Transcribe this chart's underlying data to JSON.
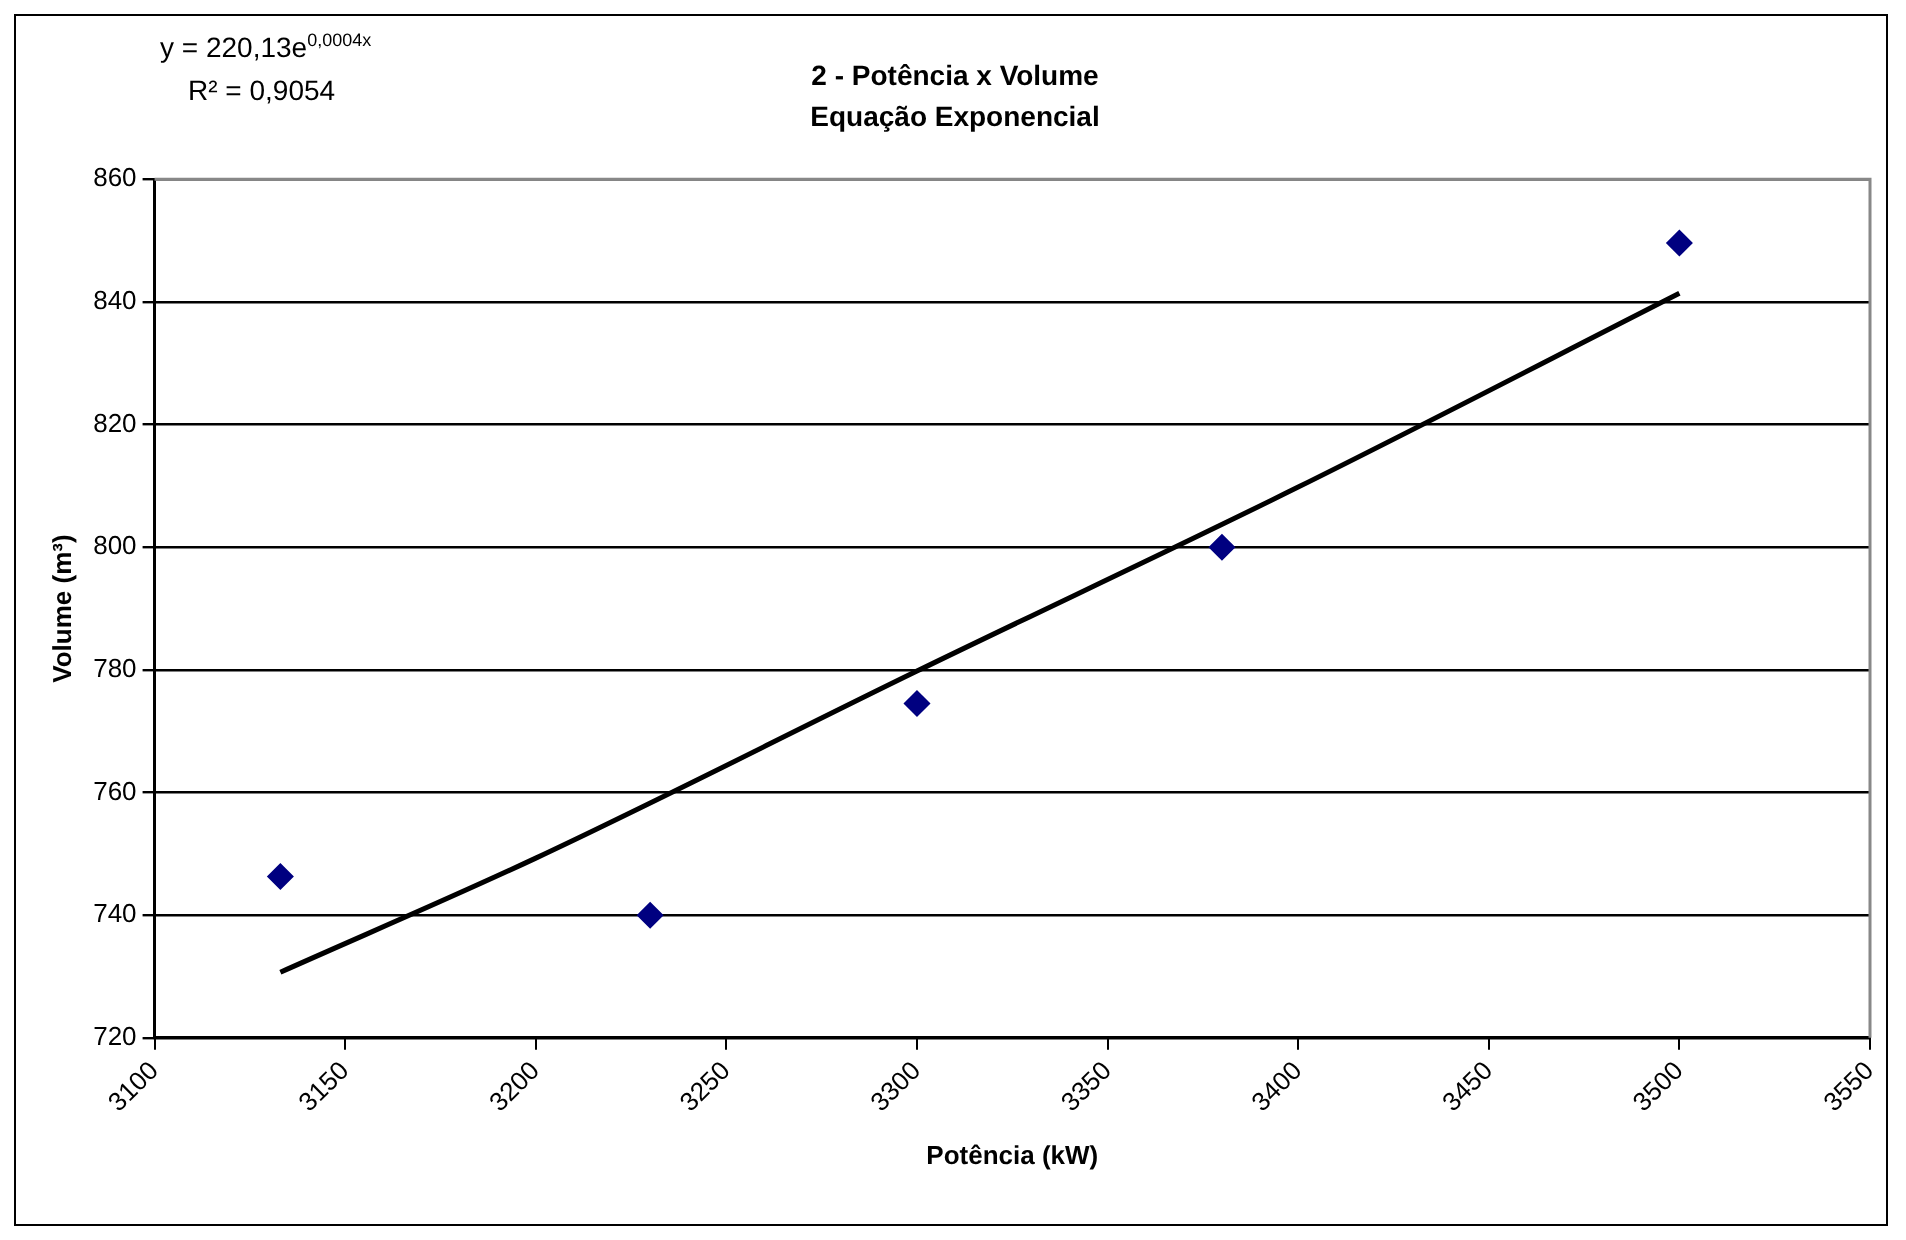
{
  "chart_data": {
    "type": "scatter",
    "title": "2 - Potência x Volume",
    "subtitle": "Equação Exponencial",
    "xlabel": "Potência (kW)",
    "ylabel": "Volume (m³)",
    "annotations": [
      "y = 220,13e$^{0,0004x}$",
      "R² = 0,9054"
    ],
    "series": [
      {
        "type": "scatter",
        "color": "#000080",
        "marker": "diamond",
        "x": [
          3133,
          3230,
          3300,
          3380,
          3500
        ],
        "values": [
          746.3,
          740,
          774.5,
          800,
          849.6
        ]
      },
      {
        "type": "line",
        "color": "#000000",
        "marker": "none",
        "x": [
          3133,
          3200,
          3300,
          3400,
          3500
        ],
        "values": [
          730.7,
          749.3,
          779.8,
          809.8,
          841.4
        ]
      }
    ],
    "xlim": [
      3100,
      3550
    ],
    "xticks": [
      3100,
      3150,
      3200,
      3250,
      3300,
      3350,
      3400,
      3450,
      3500,
      3550
    ],
    "ylim": [
      720,
      860
    ],
    "yticks": [
      720,
      740,
      760,
      780,
      800,
      820,
      840,
      860
    ],
    "grid": "y",
    "legend": false
  }
}
